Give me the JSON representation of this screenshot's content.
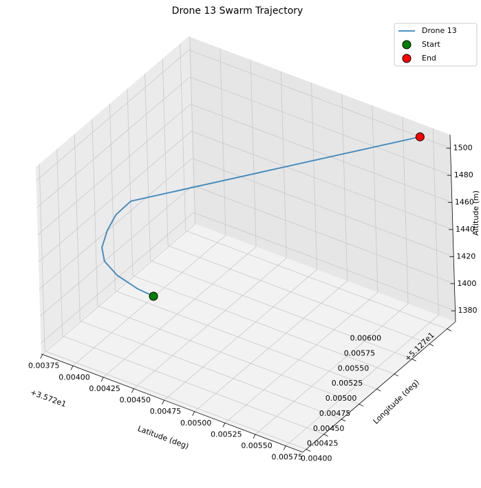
{
  "chart_data": {
    "type": "line3d",
    "title": "Drone 13 Swarm Trajectory",
    "xlabel": "Latitude (deg)",
    "ylabel": "Longitude (deg)",
    "zlabel": "Altitude (m)",
    "x_offset": "+3.572e1",
    "y_offset": "+5.127e1",
    "xlim": [
      0.00374,
      0.00589
    ],
    "ylim": [
      0.00395,
      0.00612
    ],
    "zlim": [
      1372,
      1510
    ],
    "xticks": [
      {
        "value": 0.00375,
        "label": "0.00375"
      },
      {
        "value": 0.004,
        "label": "0.00400"
      },
      {
        "value": 0.00425,
        "label": "0.00425"
      },
      {
        "value": 0.0045,
        "label": "0.00450"
      },
      {
        "value": 0.00475,
        "label": "0.00475"
      },
      {
        "value": 0.005,
        "label": "0.00500"
      },
      {
        "value": 0.00525,
        "label": "0.00525"
      },
      {
        "value": 0.0055,
        "label": "0.00550"
      },
      {
        "value": 0.00575,
        "label": "0.00575"
      }
    ],
    "yticks": [
      {
        "value": 0.004,
        "label": "0.00400"
      },
      {
        "value": 0.00425,
        "label": "0.00425"
      },
      {
        "value": 0.0045,
        "label": "0.00450"
      },
      {
        "value": 0.00475,
        "label": "0.00475"
      },
      {
        "value": 0.005,
        "label": "0.00500"
      },
      {
        "value": 0.00525,
        "label": "0.00525"
      },
      {
        "value": 0.0055,
        "label": "0.00550"
      },
      {
        "value": 0.00575,
        "label": "0.00575"
      },
      {
        "value": 0.006,
        "label": "0.00600"
      }
    ],
    "zticks": [
      1380,
      1400,
      1420,
      1440,
      1460,
      1480,
      1500
    ],
    "grid": true,
    "legend": "upper right",
    "series": [
      {
        "name": "Drone 13",
        "color": "#1f77b4",
        "x": [
          0.004255,
          0.00416,
          0.004,
          0.00388,
          0.00382,
          0.00381,
          0.00382,
          0.00388,
          0.00564
        ],
        "y": [
          0.00467,
          0.00461,
          0.0046,
          0.00463,
          0.0047,
          0.0048,
          0.00491,
          0.00502,
          0.00612
        ],
        "z": [
          1400,
          1405,
          1410,
          1415,
          1420,
          1428,
          1435,
          1442,
          1500
        ]
      }
    ],
    "markers": [
      {
        "name": "Start",
        "color": "green",
        "x": 0.004255,
        "y": 0.00467,
        "z": 1400
      },
      {
        "name": "End",
        "color": "red",
        "x": 0.00564,
        "y": 0.00612,
        "z": 1500
      }
    ]
  }
}
